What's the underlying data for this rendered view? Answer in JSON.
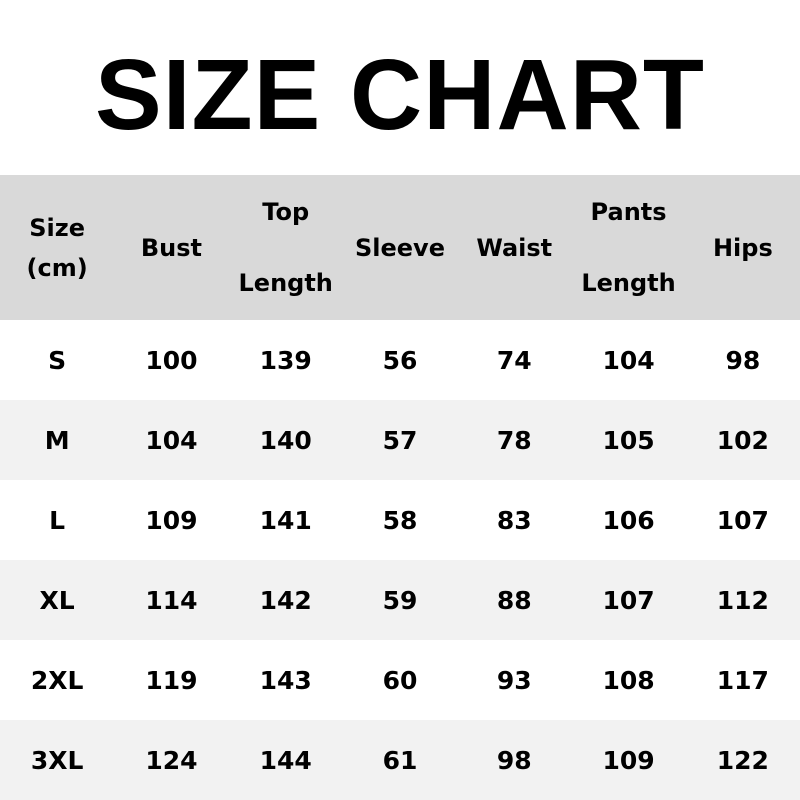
{
  "title": "SIZE CHART",
  "columns": [
    [
      "Size",
      "(cm)"
    ],
    [
      "Bust"
    ],
    [
      "Top",
      "Length"
    ],
    [
      "Sleeve"
    ],
    [
      "Waist"
    ],
    [
      "Pants",
      "Length"
    ],
    [
      "Hips"
    ]
  ],
  "rows": [
    [
      "S",
      "100",
      "139",
      "56",
      "74",
      "104",
      "98"
    ],
    [
      "M",
      "104",
      "140",
      "57",
      "78",
      "105",
      "102"
    ],
    [
      "L",
      "109",
      "141",
      "58",
      "83",
      "106",
      "107"
    ],
    [
      "XL",
      "114",
      "142",
      "59",
      "88",
      "107",
      "112"
    ],
    [
      "2XL",
      "119",
      "143",
      "60",
      "93",
      "108",
      "117"
    ],
    [
      "3XL",
      "124",
      "144",
      "61",
      "98",
      "109",
      "122"
    ]
  ],
  "colors": {
    "header_bg": "#d9d9d9",
    "stripe_bg": "#f2f2f2"
  }
}
